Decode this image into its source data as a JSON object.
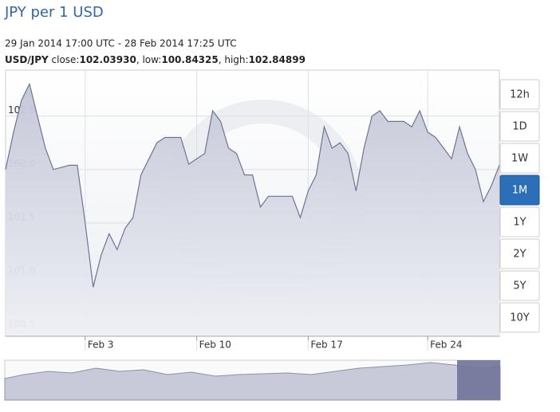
{
  "chart_data": {
    "type": "area",
    "title": "JPY per 1 USD",
    "subtitle": "29 Jan 2014 17:00 UTC - 28 Feb 2014 17:25 UTC",
    "pair": "USD/JPY",
    "stats": [
      {
        "label": "close:",
        "value": "102.03930"
      },
      {
        "label": "low:",
        "value": "100.84325"
      },
      {
        "label": "high:",
        "value": "102.84899"
      }
    ],
    "categories": [
      null,
      null,
      null,
      null,
      null,
      null,
      null,
      null,
      null,
      null,
      "Feb 3",
      null,
      null,
      null,
      null,
      null,
      null,
      null,
      null,
      null,
      null,
      null,
      null,
      null,
      "Feb 10",
      null,
      null,
      null,
      null,
      null,
      null,
      null,
      null,
      null,
      null,
      null,
      null,
      null,
      "Feb 17",
      null,
      null,
      null,
      null,
      null,
      null,
      null,
      null,
      null,
      null,
      null,
      null,
      null,
      null,
      "Feb 24",
      null,
      null,
      null,
      null,
      null,
      null,
      null,
      null,
      null
    ],
    "values": [
      102.0,
      102.35,
      102.65,
      102.8,
      102.5,
      102.2,
      102.0,
      102.02,
      102.04,
      102.04,
      101.5,
      100.9,
      101.2,
      101.4,
      101.25,
      101.45,
      101.55,
      101.95,
      102.1,
      102.25,
      102.3,
      102.3,
      102.3,
      102.05,
      102.1,
      102.15,
      102.55,
      102.45,
      102.2,
      102.15,
      101.95,
      101.95,
      101.65,
      101.75,
      101.75,
      101.75,
      101.75,
      101.55,
      101.8,
      101.95,
      102.4,
      102.2,
      102.25,
      102.15,
      101.8,
      102.2,
      102.5,
      102.55,
      102.45,
      102.45,
      102.45,
      102.4,
      102.55,
      102.35,
      102.3,
      102.2,
      102.1,
      102.4,
      102.15,
      102.0,
      101.7,
      101.85,
      102.04
    ],
    "color": "#6f7397",
    "fill": "#c8cad9",
    "ylim": [
      100.44,
      102.93
    ],
    "yticks": [
      100.5,
      {
        "value": 101,
        "label": "101.0"
      },
      101.5,
      {
        "value": 102,
        "label": "102.0"
      },
      102.5
    ],
    "grid": true,
    "range_buttons": [
      "12h",
      "1D",
      "1W",
      "1M",
      "1Y",
      "2Y",
      "5Y",
      "10Y"
    ],
    "selected_range": "1M"
  }
}
